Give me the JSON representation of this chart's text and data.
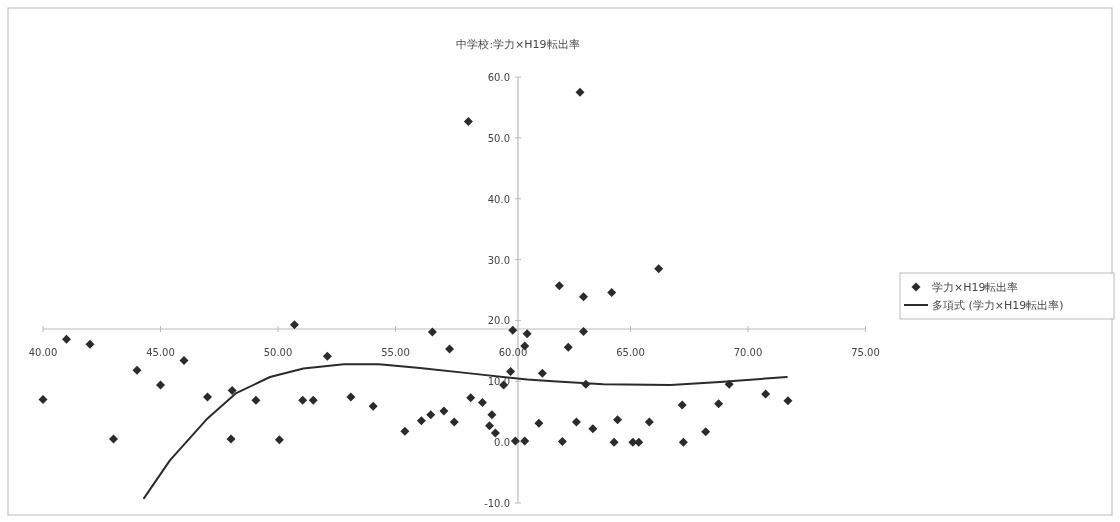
{
  "chart_data": {
    "type": "scatter",
    "title": "中学校:学力×H19転出率",
    "xlim": [
      40,
      75
    ],
    "ylim": [
      -10,
      60
    ],
    "xticks": [
      {
        "value": 40,
        "label": "40.00"
      },
      {
        "value": 45,
        "label": "45.00"
      },
      {
        "value": 50,
        "label": "50.00"
      },
      {
        "value": 55,
        "label": "55.00"
      },
      {
        "value": 60,
        "label": "60.00"
      },
      {
        "value": 65,
        "label": "65.00"
      },
      {
        "value": 70,
        "label": "70.00"
      },
      {
        "value": 75,
        "label": "75.00"
      }
    ],
    "yticks": [
      {
        "value": -10,
        "label": "-10.0"
      },
      {
        "value": 0,
        "label": "0.0"
      },
      {
        "value": 10,
        "label": "10.0"
      },
      {
        "value": 20,
        "label": "20.0"
      },
      {
        "value": 30,
        "label": "30.0"
      },
      {
        "value": 40,
        "label": "40.0"
      },
      {
        "value": 50,
        "label": "50.0"
      },
      {
        "value": 60,
        "label": "60.0"
      }
    ],
    "grid": false,
    "legend": "right",
    "series": [
      {
        "name": "学力×H19転出率",
        "type": "scatter",
        "marker": "diamond",
        "color": "#2b2b2b",
        "x": [
          40.0,
          41.0,
          42.0,
          43.0,
          44.0,
          45.0,
          46.0,
          47.0,
          48.05,
          48.0,
          49.06,
          50.06,
          50.7,
          51.05,
          51.5,
          52.1,
          53.1,
          54.05,
          55.4,
          56.1,
          56.5,
          56.57,
          57.06,
          57.3,
          57.5,
          58.2,
          58.7,
          59.1,
          59.0,
          59.25,
          59.6,
          59.9,
          59.99,
          60.1,
          60.5,
          60.5,
          60.6,
          58.1,
          62.85,
          61.97,
          63.0,
          64.2,
          66.2,
          63.0,
          62.35,
          61.25,
          63.1,
          69.2,
          70.75,
          71.7,
          67.2,
          68.75,
          61.1,
          62.7,
          63.4,
          64.45,
          65.8,
          62.1,
          64.3,
          65.1,
          65.35,
          67.25,
          68.2
        ],
        "values": [
          7.0,
          16.9,
          16.1,
          0.5,
          11.8,
          9.4,
          13.4,
          7.4,
          8.5,
          0.5,
          6.9,
          0.4,
          19.3,
          6.9,
          6.9,
          14.1,
          7.4,
          5.9,
          1.8,
          3.5,
          4.5,
          18.1,
          5.1,
          15.3,
          3.3,
          7.3,
          6.5,
          4.5,
          2.7,
          1.5,
          9.4,
          11.6,
          18.4,
          0.2,
          0.2,
          15.8,
          17.8,
          52.7,
          57.5,
          25.7,
          23.9,
          24.6,
          28.5,
          18.2,
          15.6,
          11.3,
          9.5,
          9.5,
          7.9,
          6.8,
          6.1,
          6.3,
          3.1,
          3.3,
          2.2,
          3.7,
          3.3,
          0.1,
          0,
          0,
          0,
          0,
          1.7
        ]
      },
      {
        "name": "多項式 (学力×H19転出率)",
        "type": "line",
        "marker": "none",
        "line_style": "solid",
        "color": "#2b2b2b",
        "x": [
          44.3,
          45.4,
          47.0,
          48.2,
          49.66,
          51.08,
          52.8,
          54.3,
          56.04,
          58.17,
          60.6,
          61.7,
          63.84,
          66.7,
          68.8,
          71.65
        ],
        "values": [
          -9.2,
          -3.0,
          3.9,
          8.0,
          10.7,
          12.1,
          12.8,
          12.8,
          12.2,
          11.3,
          10.3,
          10.0,
          9.5,
          9.4,
          9.9,
          10.7
        ]
      }
    ]
  }
}
